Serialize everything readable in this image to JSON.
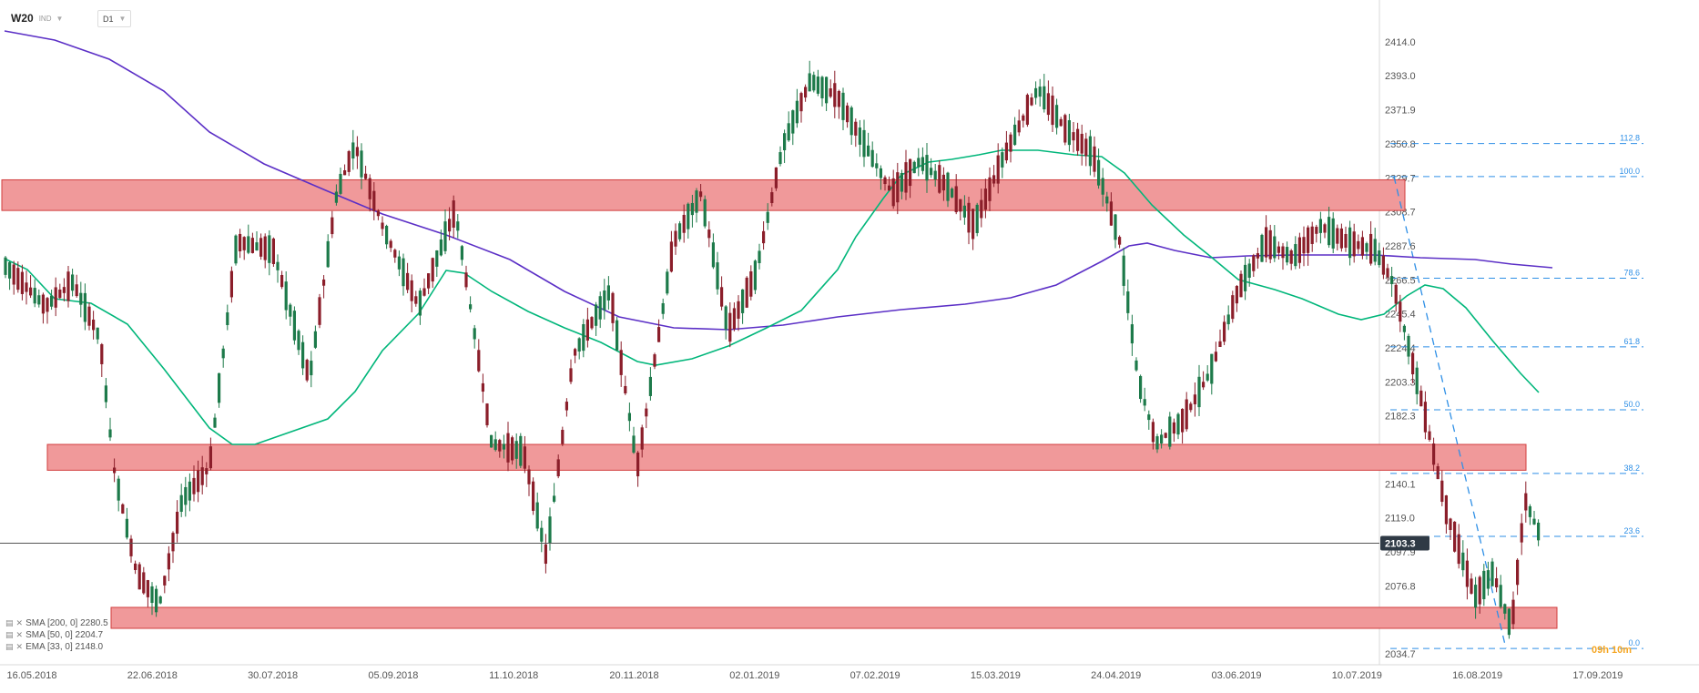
{
  "header": {
    "symbol": "W20",
    "symbol_type": "IND",
    "timeframe": "D1"
  },
  "legend": [
    {
      "label": "SMA [200, 0] 2280.5",
      "color": "#5b2fc6"
    },
    {
      "label": "SMA [50, 0] 2204.7",
      "color": "#00b67a"
    },
    {
      "label": "EMA [33, 0] 2148.0",
      "color": "#e06a6a"
    }
  ],
  "colors": {
    "up": "#1d7a4a",
    "down": "#8b1e2a",
    "sma200": "#5b2fc6",
    "sma50": "#00b67a",
    "zone_fill": "#f0999a",
    "zone_stroke": "#d23f3f",
    "fib": "#2e8fe6",
    "last_badge": "#2f3a45",
    "countdown": "#f5a623"
  },
  "annotations": {
    "last_price_label": "2103.3",
    "countdown": "09h 10m"
  },
  "chart_data": {
    "type": "candlestick",
    "title": "",
    "y_ticks": [
      "2414.0",
      "2393.0",
      "2371.9",
      "2350.8",
      "2329.7",
      "2308.7",
      "2287.6",
      "2266.5",
      "2245.4",
      "2224.4",
      "2203.3",
      "2182.3",
      "2161.1",
      "2140.1",
      "2119.0",
      "2097.9",
      "2076.8",
      "2055.8",
      "2034.7"
    ],
    "x_ticks": [
      "16.05.2018",
      "22.06.2018",
      "30.07.2018",
      "05.09.2018",
      "11.10.2018",
      "20.11.2018",
      "02.01.2019",
      "07.02.2019",
      "15.03.2019",
      "24.04.2019",
      "03.06.2019",
      "10.07.2019",
      "16.08.2019",
      "17.09.2019"
    ],
    "last_price": 2103.3,
    "zones": [
      {
        "from": 2309.5,
        "to": 2328.5
      },
      {
        "from": 2148.5,
        "to": 2164.5
      },
      {
        "from": 2050.5,
        "to": 2063.5
      }
    ],
    "fibonacci": {
      "levels": [
        {
          "label": "112.8",
          "value": 2351.0
        },
        {
          "label": "100.0",
          "value": 2330.5
        },
        {
          "label": "78.6",
          "value": 2267.5
        },
        {
          "label": "61.8",
          "value": 2225.0
        },
        {
          "label": "50.0",
          "value": 2186.0
        },
        {
          "label": "38.2",
          "value": 2146.5
        },
        {
          "label": "23.6",
          "value": 2107.5
        },
        {
          "label": "0.0",
          "value": 2038.0
        }
      ]
    },
    "series": [
      {
        "name": "SMA [200, 0] 2280.5",
        "type": "line",
        "color": "#5b2fc6"
      },
      {
        "name": "SMA [50, 0] 2204.7",
        "type": "line",
        "color": "#00b67a"
      }
    ]
  }
}
